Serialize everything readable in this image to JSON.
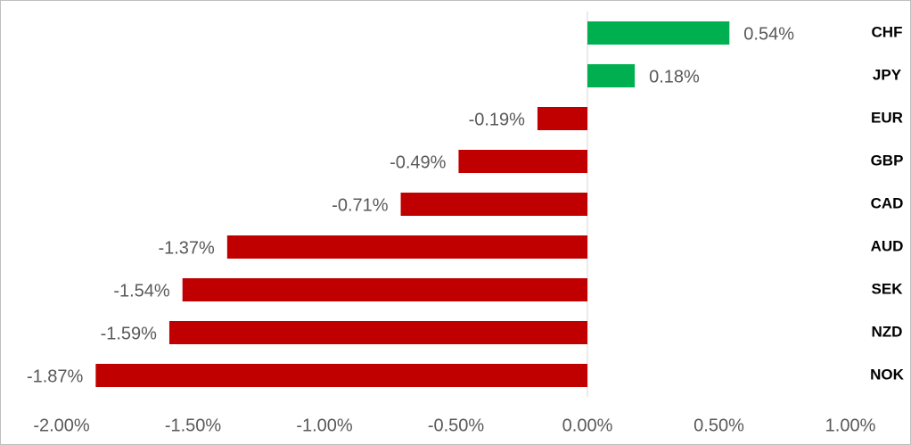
{
  "chart_data": {
    "type": "hbar",
    "categories": [
      "CHF",
      "JPY",
      "EUR",
      "GBP",
      "CAD",
      "AUD",
      "SEK",
      "NZD",
      "NOK"
    ],
    "values": [
      0.54,
      0.18,
      -0.19,
      -0.49,
      -0.71,
      -1.37,
      -1.54,
      -1.59,
      -1.87
    ],
    "value_labels": [
      "0.54%",
      "0.18%",
      "-0.19%",
      "-0.49%",
      "-0.71%",
      "-1.37%",
      "-1.54%",
      "-1.59%",
      "-1.87%"
    ],
    "colors": [
      "#00b050",
      "#00b050",
      "#c00000",
      "#c00000",
      "#c00000",
      "#c00000",
      "#c00000",
      "#c00000",
      "#c00000"
    ],
    "xlim": [
      -2,
      1
    ],
    "xticks": [
      {
        "value": -2,
        "label": "-2.00%"
      },
      {
        "value": -1.5,
        "label": "-1.50%"
      },
      {
        "value": -1,
        "label": "-1.00%"
      },
      {
        "value": -0.5,
        "label": "-0.50%"
      },
      {
        "value": 0,
        "label": "0.00%"
      },
      {
        "value": 0.5,
        "label": "0.50%"
      },
      {
        "value": 1,
        "label": "1.00%"
      }
    ]
  }
}
